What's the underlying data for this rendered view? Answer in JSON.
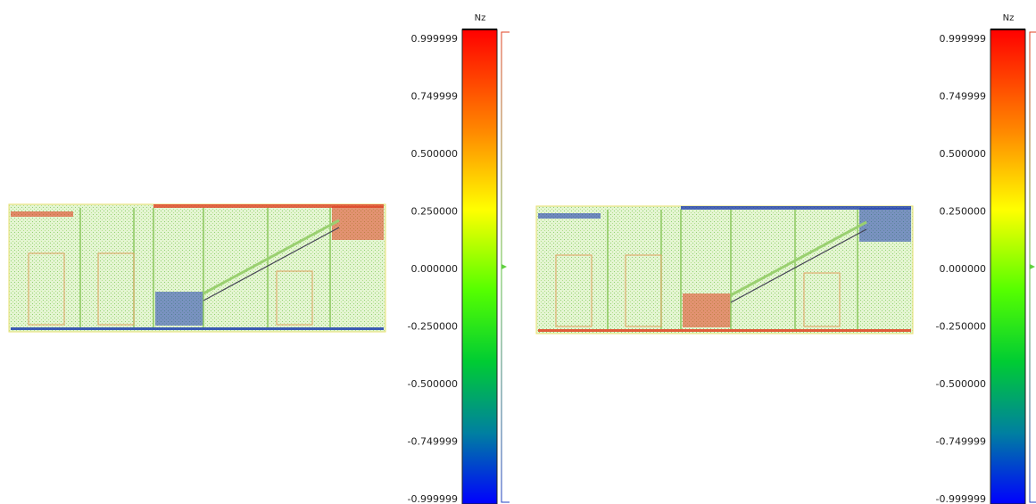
{
  "panels": [
    {
      "scale": {
        "title": "Nz",
        "ticks": [
          "0.999999",
          "0.749999",
          "0.500000",
          "0.250000",
          "0.000000",
          "-0.250000",
          "-0.500000",
          "-0.749999",
          "-0.999999"
        ]
      }
    },
    {
      "scale": {
        "title": "Nz",
        "ticks": [
          "0.999999",
          "0.749999",
          "0.500000",
          "0.250000",
          "0.000000",
          "-0.250000",
          "-0.500000",
          "-0.749999",
          "-0.999999"
        ]
      }
    }
  ]
}
